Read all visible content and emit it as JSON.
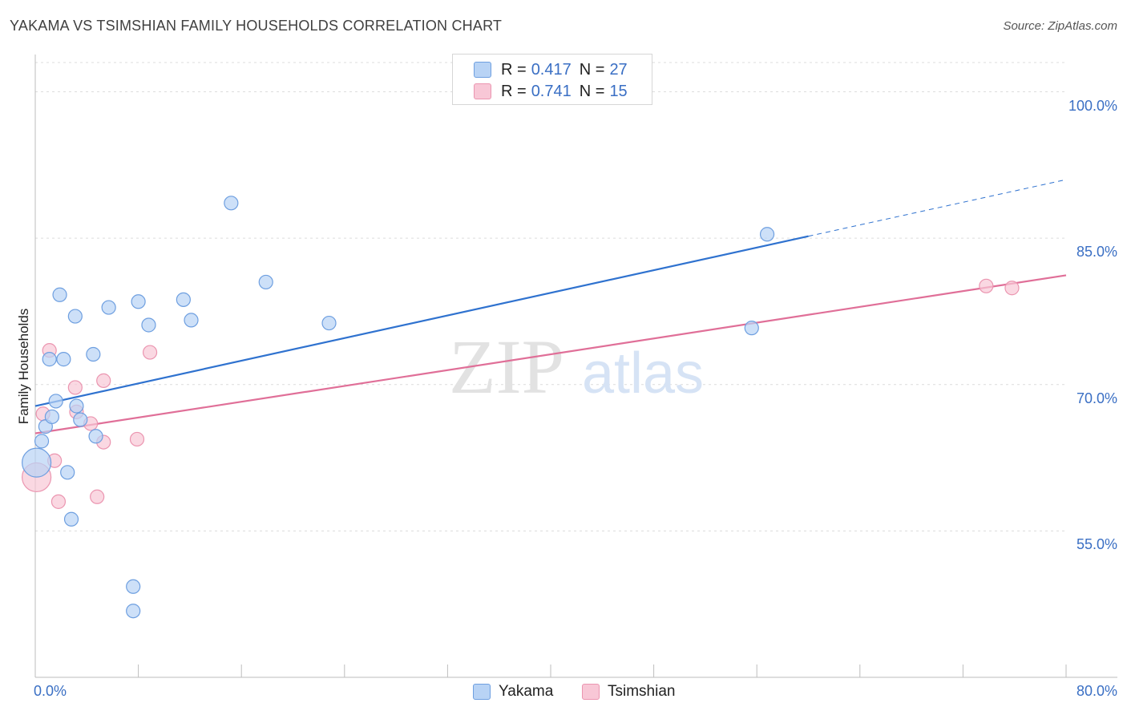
{
  "title": "YAKAMA VS TSIMSHIAN FAMILY HOUSEHOLDS CORRELATION CHART",
  "source": "Source: ZipAtlas.com",
  "watermark": {
    "zip": "ZIP",
    "atlas": "atlas"
  },
  "legend": {
    "items": [
      {
        "r_label": "R =",
        "r_value": "0.417",
        "n_label": "N =",
        "n_value": "27"
      },
      {
        "r_label": "R =",
        "r_value": "0.741",
        "n_label": "N =",
        "n_value": "15"
      }
    ]
  },
  "colors": {
    "yakama_fill": "#b8d3f5",
    "yakama_stroke": "#6e9fe0",
    "yakama_line": "#2f72cf",
    "tsimshian_fill": "#f8c7d6",
    "tsimshian_stroke": "#eb95b0",
    "tsimshian_line": "#e06f98",
    "grid": "#dcdcdc",
    "tick_text": "#3a6fc4"
  },
  "chart_data": {
    "type": "scatter",
    "title": "YAKAMA VS TSIMSHIAN FAMILY HOUSEHOLDS CORRELATION CHART",
    "xlabel": "",
    "ylabel": "Family Households",
    "xlim": [
      0,
      80
    ],
    "ylim": [
      40,
      103
    ],
    "x_tick_labels": [
      "0.0%",
      "80.0%"
    ],
    "y_ticks": [
      55,
      70,
      85,
      100
    ],
    "y_tick_labels": [
      "55.0%",
      "70.0%",
      "85.0%",
      "100.0%"
    ],
    "grid": true,
    "legend_position": "bottom",
    "series": [
      {
        "name": "Yakama",
        "points": [
          {
            "x": 0.1,
            "y": 62.0,
            "big": true
          },
          {
            "x": 0.5,
            "y": 64.2
          },
          {
            "x": 0.8,
            "y": 65.7
          },
          {
            "x": 1.1,
            "y": 72.6
          },
          {
            "x": 1.3,
            "y": 66.7
          },
          {
            "x": 1.6,
            "y": 68.3
          },
          {
            "x": 1.9,
            "y": 79.2
          },
          {
            "x": 2.2,
            "y": 72.6
          },
          {
            "x": 2.5,
            "y": 61.0
          },
          {
            "x": 2.8,
            "y": 56.2
          },
          {
            "x": 3.1,
            "y": 77.0
          },
          {
            "x": 3.2,
            "y": 67.8
          },
          {
            "x": 3.5,
            "y": 66.4
          },
          {
            "x": 4.5,
            "y": 73.1
          },
          {
            "x": 4.7,
            "y": 64.7
          },
          {
            "x": 5.7,
            "y": 77.9
          },
          {
            "x": 7.6,
            "y": 49.3
          },
          {
            "x": 7.6,
            "y": 46.8
          },
          {
            "x": 8.0,
            "y": 78.5
          },
          {
            "x": 8.8,
            "y": 76.1
          },
          {
            "x": 11.5,
            "y": 78.7
          },
          {
            "x": 12.1,
            "y": 76.6
          },
          {
            "x": 15.2,
            "y": 88.6
          },
          {
            "x": 17.9,
            "y": 80.5
          },
          {
            "x": 22.8,
            "y": 76.3
          },
          {
            "x": 55.6,
            "y": 75.8
          },
          {
            "x": 56.8,
            "y": 85.4
          }
        ],
        "trend": {
          "x0": 0,
          "y0": 67.8,
          "x1": 60,
          "y1": 85.2,
          "dash_to_x": 80,
          "dash_to_y": 91.0
        }
      },
      {
        "name": "Tsimshian",
        "points": [
          {
            "x": 0.1,
            "y": 60.5,
            "big": true
          },
          {
            "x": 0.6,
            "y": 67.0
          },
          {
            "x": 1.1,
            "y": 73.5
          },
          {
            "x": 1.5,
            "y": 62.2
          },
          {
            "x": 1.8,
            "y": 58.0
          },
          {
            "x": 3.1,
            "y": 69.7
          },
          {
            "x": 3.2,
            "y": 67.2
          },
          {
            "x": 4.3,
            "y": 66.0
          },
          {
            "x": 4.8,
            "y": 58.5
          },
          {
            "x": 5.3,
            "y": 64.1
          },
          {
            "x": 5.3,
            "y": 70.4
          },
          {
            "x": 7.9,
            "y": 64.4
          },
          {
            "x": 8.9,
            "y": 73.3
          },
          {
            "x": 73.8,
            "y": 80.1
          },
          {
            "x": 75.8,
            "y": 79.9
          }
        ],
        "trend": {
          "x0": 0,
          "y0": 65.0,
          "x1": 80,
          "y1": 81.2
        }
      }
    ]
  }
}
